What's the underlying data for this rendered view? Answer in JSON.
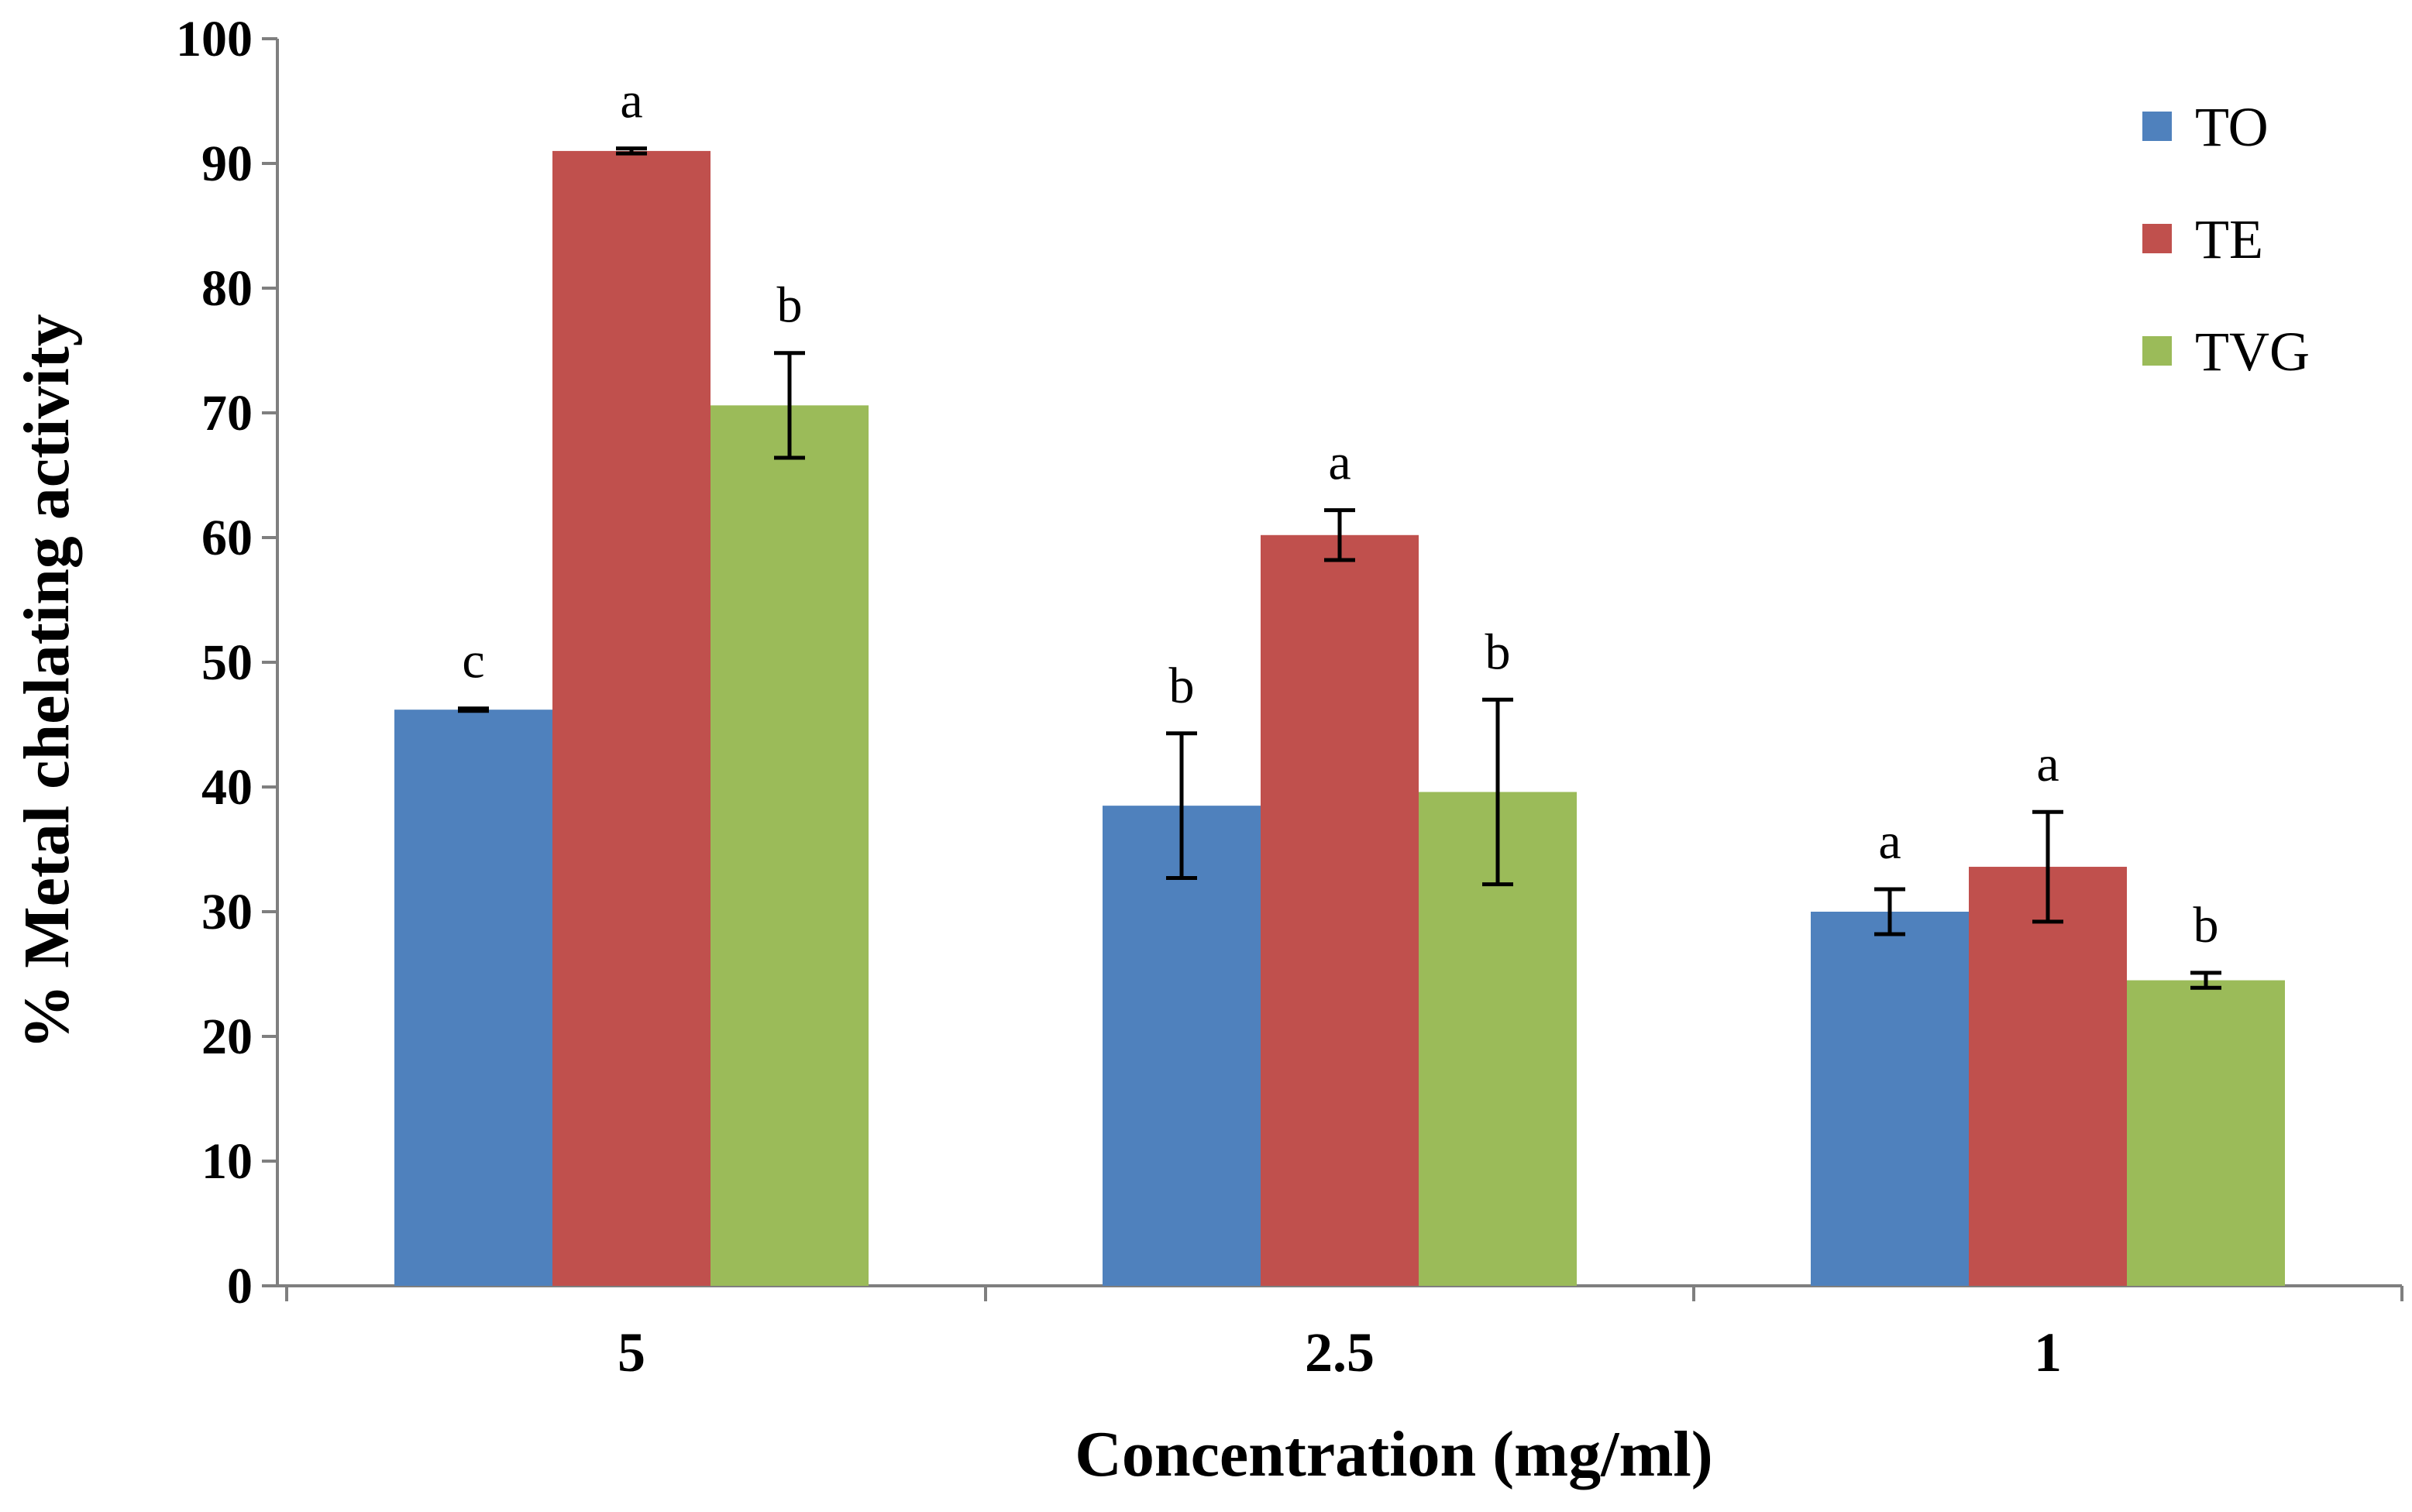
{
  "chart_data": {
    "type": "bar",
    "xlabel": "Concentration  (mg/ml)",
    "ylabel": "% Metal chelating  activity",
    "categories": [
      "5",
      "2.5",
      "1"
    ],
    "ylim": [
      0,
      100
    ],
    "yticks": [
      0,
      10,
      20,
      30,
      40,
      50,
      60,
      70,
      80,
      90,
      100
    ],
    "legend_position": "top-right",
    "grid": false,
    "series": [
      {
        "name": "TO",
        "color": "#4F81BD",
        "values": [
          46.2,
          38.5,
          30.0
        ],
        "errors": [
          0.1,
          5.8,
          1.8
        ],
        "labels": [
          "c",
          "b",
          "a"
        ]
      },
      {
        "name": "TE",
        "color": "#C0504D",
        "values": [
          91.0,
          60.2,
          33.6
        ],
        "errors": [
          0.2,
          2.0,
          4.4
        ],
        "labels": [
          "a",
          "a",
          "a"
        ]
      },
      {
        "name": "TVG",
        "color": "#9BBB59",
        "values": [
          70.6,
          39.6,
          24.5
        ],
        "errors": [
          4.2,
          7.4,
          0.6
        ],
        "labels": [
          "b",
          "b",
          "b"
        ]
      }
    ]
  }
}
